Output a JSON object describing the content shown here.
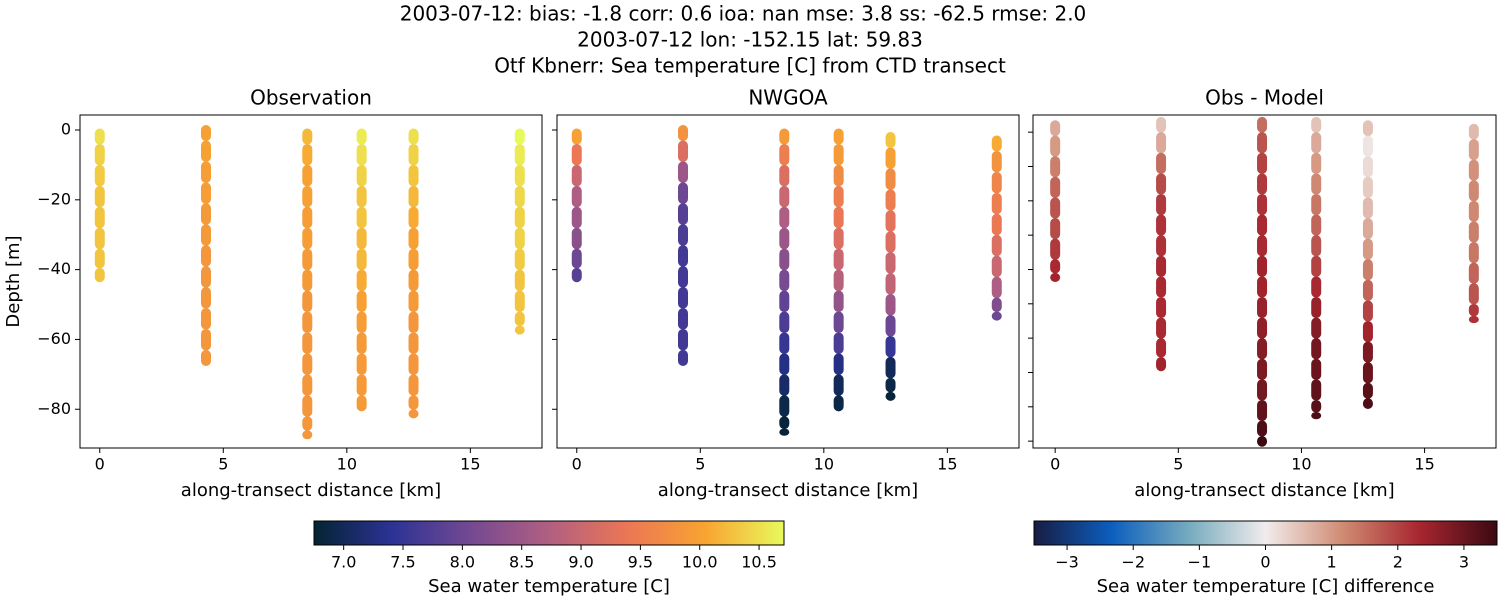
{
  "title": [
    "2003-07-12: bias: -1.8  corr: 0.6  ioa: nan  mse: 3.8  ss: -62.5  rmse: 2.0",
    "2003-07-12 lon: -152.15 lat: 59.83",
    "Otf Kbnerr: Sea temperature [C] from CTD transect"
  ],
  "chart_data": [
    {
      "type": "scatter",
      "title": "Observation",
      "xlabel": "along-transect distance [km]",
      "ylabel": "Depth [m]",
      "colorbar": 0,
      "xlim": [
        -0.8,
        17.9
      ],
      "ylim": [
        -91.1,
        4.3
      ],
      "xticks": [
        0,
        5,
        10,
        15
      ],
      "yticks": [
        0,
        {
          "value": -20,
          "label": "−20"
        },
        {
          "value": -40,
          "label": "−40"
        },
        {
          "value": -60,
          "label": "−60"
        },
        {
          "value": -80,
          "label": "−80"
        }
      ],
      "show_ytick_labels": true,
      "casts": [
        {
          "x": 0,
          "depth": [
            -1,
            -7,
            -13,
            -19,
            -25,
            -31,
            -37,
            -42
          ],
          "values": [
            10.5,
            10.4,
            10.35,
            10.3,
            10.3,
            10.3,
            10.3,
            10.3
          ]
        },
        {
          "x": 4.3,
          "depth": [
            0,
            -6,
            -12,
            -18,
            -24,
            -30,
            -36,
            -42,
            -48,
            -54,
            -60,
            -66
          ],
          "values": [
            10.0,
            10.0,
            9.95,
            9.95,
            9.9,
            9.9,
            9.85,
            9.85,
            9.85,
            9.85,
            9.85,
            9.85
          ]
        },
        {
          "x": 8.4,
          "depth": [
            -1,
            -7,
            -13,
            -19,
            -25,
            -31,
            -37,
            -43,
            -49,
            -55,
            -61,
            -67,
            -73,
            -79,
            -85,
            -87
          ],
          "values": [
            10.2,
            10.1,
            10.0,
            10.0,
            9.95,
            9.95,
            9.9,
            9.9,
            9.85,
            9.85,
            9.85,
            9.85,
            9.85,
            9.85,
            9.85,
            9.85
          ]
        },
        {
          "x": 10.6,
          "depth": [
            -1,
            -7,
            -13,
            -19,
            -25,
            -31,
            -37,
            -43,
            -49,
            -55,
            -61,
            -67,
            -73,
            -79
          ],
          "values": [
            10.6,
            10.5,
            10.4,
            10.3,
            10.3,
            10.2,
            10.2,
            10.1,
            10.0,
            9.95,
            9.9,
            9.9,
            9.9,
            9.9
          ]
        },
        {
          "x": 12.7,
          "depth": [
            -1,
            -7,
            -13,
            -19,
            -25,
            -31,
            -37,
            -43,
            -49,
            -55,
            -61,
            -67,
            -73,
            -79,
            -81
          ],
          "values": [
            10.5,
            10.4,
            10.3,
            10.2,
            10.1,
            10.0,
            9.95,
            9.9,
            9.9,
            9.85,
            9.85,
            9.85,
            9.85,
            9.85,
            9.85
          ]
        },
        {
          "x": 17,
          "depth": [
            -1,
            -7,
            -13,
            -19,
            -25,
            -31,
            -37,
            -43,
            -49,
            -55,
            -57
          ],
          "values": [
            10.7,
            10.6,
            10.5,
            10.45,
            10.4,
            10.4,
            10.35,
            10.3,
            10.3,
            10.3,
            10.3
          ]
        }
      ]
    },
    {
      "type": "scatter",
      "title": "NWGOA",
      "xlabel": "along-transect distance [km]",
      "colorbar": 0,
      "xlim": [
        -0.8,
        17.9
      ],
      "ylim": [
        -91.1,
        4.3
      ],
      "xticks": [
        0,
        5,
        10,
        15
      ],
      "yticks": [
        0,
        -20,
        -40,
        -60,
        -80
      ],
      "show_ytick_labels": false,
      "casts": [
        {
          "x": 0,
          "depth": [
            -1,
            -7,
            -13,
            -19,
            -25,
            -31,
            -37,
            -42
          ],
          "values": [
            10.0,
            9.4,
            9.0,
            8.7,
            8.5,
            8.3,
            8.0,
            7.8
          ]
        },
        {
          "x": 4.3,
          "depth": [
            0,
            -6,
            -12,
            -18,
            -24,
            -30,
            -36,
            -42,
            -48,
            -54,
            -60,
            -66
          ],
          "values": [
            9.8,
            9.2,
            8.5,
            8.0,
            7.8,
            7.7,
            7.6,
            7.6,
            7.6,
            7.6,
            7.6,
            7.6
          ]
        },
        {
          "x": 8.4,
          "depth": [
            -1,
            -7,
            -13,
            -19,
            -25,
            -31,
            -37,
            -43,
            -49,
            -55,
            -61,
            -67,
            -73,
            -79,
            -85,
            -86
          ],
          "values": [
            9.9,
            9.5,
            9.2,
            9.0,
            8.7,
            8.5,
            8.3,
            8.1,
            7.9,
            7.7,
            7.5,
            7.3,
            7.1,
            6.9,
            6.8,
            6.8
          ]
        },
        {
          "x": 10.6,
          "depth": [
            -1,
            -7,
            -13,
            -19,
            -25,
            -31,
            -37,
            -43,
            -49,
            -55,
            -61,
            -67,
            -73,
            -79
          ],
          "values": [
            10.0,
            9.9,
            9.7,
            9.5,
            9.4,
            9.2,
            9.0,
            8.8,
            8.4,
            8.0,
            7.7,
            7.3,
            7.0,
            6.9
          ]
        },
        {
          "x": 12.7,
          "depth": [
            -2,
            -8,
            -14,
            -20,
            -26,
            -32,
            -38,
            -44,
            -50,
            -56,
            -62,
            -68,
            -74,
            -76
          ],
          "values": [
            10.3,
            10.0,
            9.7,
            9.5,
            9.3,
            9.2,
            9.0,
            8.9,
            8.5,
            8.0,
            7.5,
            7.0,
            6.9,
            6.8
          ]
        },
        {
          "x": 17,
          "depth": [
            -3,
            -9,
            -15,
            -21,
            -27,
            -33,
            -39,
            -45,
            -51,
            -53
          ],
          "values": [
            10.1,
            9.8,
            9.6,
            9.5,
            9.4,
            9.2,
            9.0,
            8.7,
            8.2,
            8.0
          ]
        }
      ]
    },
    {
      "type": "scatter",
      "title": "Obs - Model",
      "xlabel": "along-transect distance [km]",
      "colorbar": 1,
      "xlim": [
        -0.9,
        17.9
      ],
      "ylim": [
        -92,
        5
      ],
      "xticks": [
        0,
        5,
        10,
        15
      ],
      "yticks": [
        0,
        -10,
        -20,
        -30,
        -40,
        -50,
        -60,
        -70,
        -80,
        -90
      ],
      "show_ytick_labels": false,
      "casts": [
        {
          "x": 0,
          "depth": [
            2,
            -4,
            -10,
            -16,
            -22,
            -28,
            -34,
            -40,
            -42
          ],
          "values": [
            0.8,
            1.0,
            1.3,
            1.6,
            1.8,
            1.9,
            2.1,
            2.3,
            2.4
          ]
        },
        {
          "x": 4.3,
          "depth": [
            3,
            -3,
            -9,
            -15,
            -21,
            -27,
            -33,
            -39,
            -45,
            -51,
            -57,
            -63,
            -68
          ],
          "values": [
            0.5,
            0.8,
            1.5,
            1.9,
            2.1,
            2.2,
            2.2,
            2.3,
            2.3,
            2.3,
            2.3,
            2.3,
            2.4
          ]
        },
        {
          "x": 8.4,
          "depth": [
            3,
            -3,
            -9,
            -15,
            -21,
            -27,
            -33,
            -39,
            -45,
            -51,
            -57,
            -63,
            -69,
            -75,
            -81,
            -87,
            -90
          ],
          "values": [
            1.5,
            1.8,
            2.0,
            2.1,
            2.2,
            2.3,
            2.3,
            2.4,
            2.4,
            2.5,
            2.6,
            2.7,
            2.8,
            2.9,
            3.1,
            3.3,
            3.5
          ]
        },
        {
          "x": 10.6,
          "depth": [
            3,
            -3,
            -9,
            -15,
            -21,
            -27,
            -33,
            -39,
            -45,
            -51,
            -57,
            -63,
            -69,
            -75,
            -81,
            -82
          ],
          "values": [
            0.5,
            0.8,
            1.0,
            1.2,
            1.4,
            1.6,
            1.8,
            2.0,
            2.3,
            2.5,
            2.7,
            2.9,
            3.0,
            3.1,
            3.2,
            3.3
          ]
        },
        {
          "x": 12.7,
          "depth": [
            2,
            -4,
            -10,
            -16,
            -22,
            -28,
            -34,
            -40,
            -46,
            -52,
            -58,
            -64,
            -70,
            -76,
            -79
          ],
          "values": [
            0.5,
            0.1,
            0.2,
            0.4,
            0.6,
            0.8,
            1.0,
            1.3,
            1.6,
            2.0,
            2.4,
            2.8,
            3.0,
            3.2,
            3.3
          ]
        },
        {
          "x": 17,
          "depth": [
            1,
            -5,
            -11,
            -17,
            -23,
            -29,
            -35,
            -41,
            -47,
            -53,
            -54
          ],
          "values": [
            0.6,
            0.9,
            1.1,
            1.2,
            1.2,
            1.3,
            1.4,
            1.6,
            1.8,
            2.1,
            2.2
          ]
        }
      ]
    }
  ],
  "colorbars": [
    {
      "label": "Sea water temperature [C]",
      "lim": [
        6.75,
        10.71
      ],
      "ticks": [
        {
          "value": 7,
          "label": "7.0"
        },
        7.5,
        {
          "value": 8,
          "label": "8.0"
        },
        8.5,
        {
          "value": 9,
          "label": "9.0"
        },
        9.5,
        {
          "value": 10,
          "label": "10.0"
        },
        10.5
      ],
      "colors": [
        "#042333",
        "#2c3395",
        "#744992",
        "#b15f82",
        "#eb7655",
        "#f8a431",
        "#e8fa5b"
      ]
    },
    {
      "label": "Sea water temperature [C] difference",
      "lim": [
        -3.5,
        3.5
      ],
      "ticks": [
        {
          "value": -3,
          "label": "−3"
        },
        {
          "value": -2,
          "label": "−2"
        },
        {
          "value": -1,
          "label": "−1"
        },
        0,
        1,
        2,
        3
      ],
      "colors": [
        "#181c43",
        "#0c5ebe",
        "#75aabe",
        "#f1ecec",
        "#d08b73",
        "#a7262f",
        "#3c0912"
      ]
    }
  ]
}
